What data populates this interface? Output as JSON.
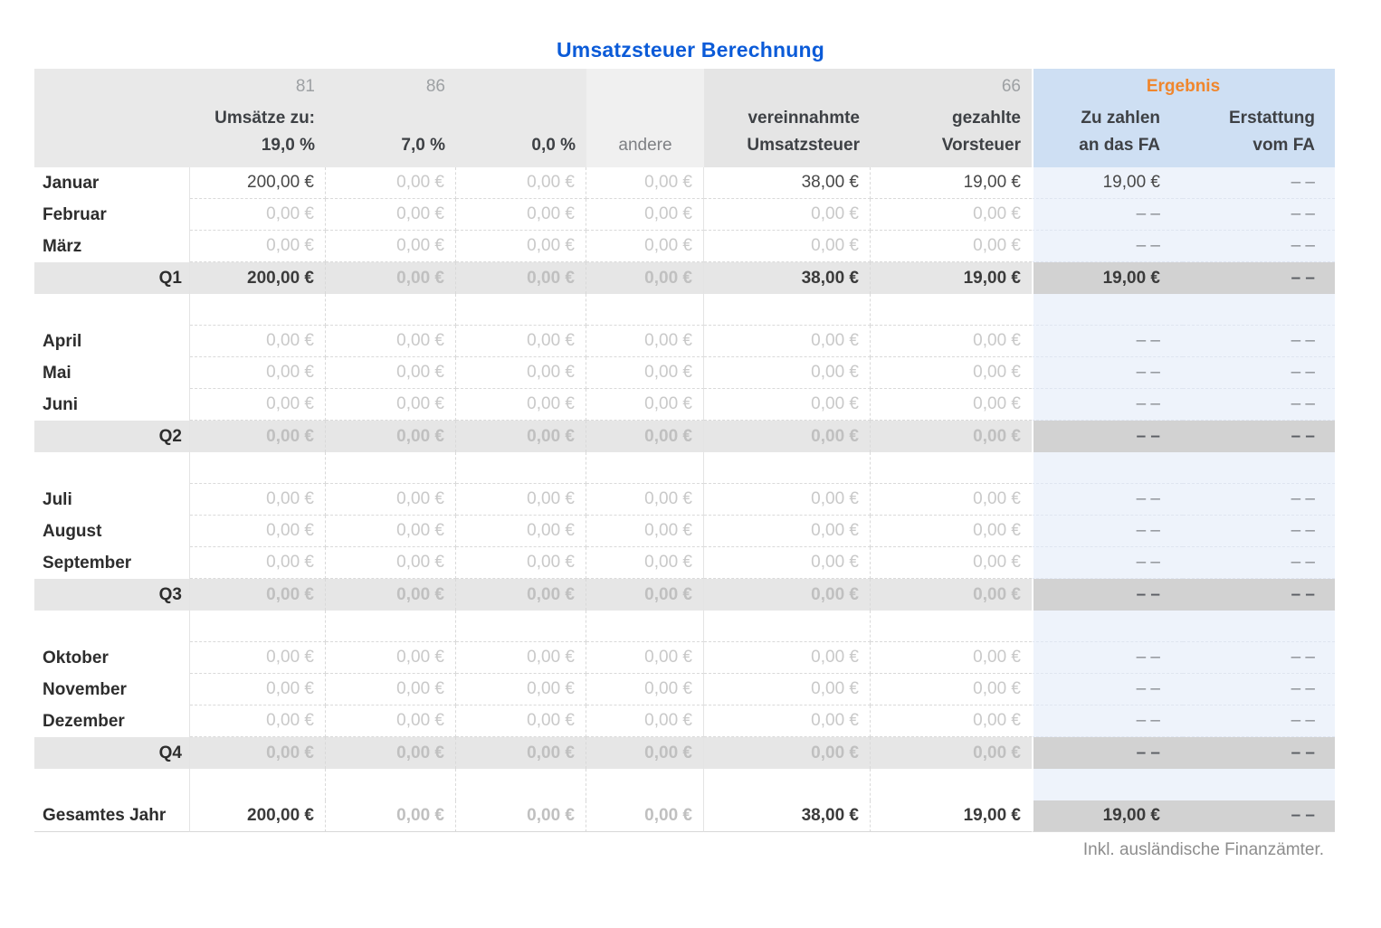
{
  "title": "Umsatzsteuer Berechnung",
  "footnote": "Inkl. ausländische Finanzämter.",
  "colors": {
    "title_blue": "#0b5bd8",
    "ergebnis_orange": "#f0862c",
    "header_blue": "#cedff3",
    "body_blue": "#eef3fb",
    "header_gray": "#e9e9e9",
    "quarter_gray": "#e6e6e6",
    "quarter_result_gray": "#d2d2d2"
  },
  "header": {
    "code_rate_19": "81",
    "code_rate_7": "86",
    "code_vorsteuer": "66",
    "ergebnis": "Ergebnis",
    "umsaetze_zu": "Umsätze zu:",
    "rate_19": "19,0 %",
    "rate_7": "7,0 %",
    "rate_0": "0,0 %",
    "andere": "andere",
    "vereinnahmte_line1": "vereinnahmte",
    "vereinnahmte_line2": "Umsatzsteuer",
    "gezahlte_line1": "gezahlte",
    "gezahlte_line2": "Vorsteuer",
    "zu_zahlen_line1": "Zu zahlen",
    "zu_zahlen_line2": "an das FA",
    "erstattung_line1": "Erstattung",
    "erstattung_line2": "vom FA"
  },
  "table": {
    "zero_value": "0,00 €",
    "dash_value": "– –",
    "rows": [
      {
        "type": "month",
        "label": "Januar",
        "cells": [
          "200,00 €",
          "0,00 €",
          "0,00 €",
          "0,00 €",
          "38,00 €",
          "19,00 €",
          "19,00 €",
          "– –"
        ]
      },
      {
        "type": "month",
        "label": "Februar",
        "cells": [
          "0,00 €",
          "0,00 €",
          "0,00 €",
          "0,00 €",
          "0,00 €",
          "0,00 €",
          "– –",
          "– –"
        ]
      },
      {
        "type": "month",
        "label": "März",
        "cells": [
          "0,00 €",
          "0,00 €",
          "0,00 €",
          "0,00 €",
          "0,00 €",
          "0,00 €",
          "– –",
          "– –"
        ]
      },
      {
        "type": "quarter",
        "label": "Q1",
        "cells": [
          "200,00 €",
          "0,00 €",
          "0,00 €",
          "0,00 €",
          "38,00 €",
          "19,00 €",
          "19,00 €",
          "– –"
        ]
      },
      {
        "type": "spacer",
        "label": "",
        "cells": [
          "",
          "",
          "",
          "",
          "",
          "",
          "",
          ""
        ]
      },
      {
        "type": "month",
        "label": "April",
        "cells": [
          "0,00 €",
          "0,00 €",
          "0,00 €",
          "0,00 €",
          "0,00 €",
          "0,00 €",
          "– –",
          "– –"
        ]
      },
      {
        "type": "month",
        "label": "Mai",
        "cells": [
          "0,00 €",
          "0,00 €",
          "0,00 €",
          "0,00 €",
          "0,00 €",
          "0,00 €",
          "– –",
          "– –"
        ]
      },
      {
        "type": "month",
        "label": "Juni",
        "cells": [
          "0,00 €",
          "0,00 €",
          "0,00 €",
          "0,00 €",
          "0,00 €",
          "0,00 €",
          "– –",
          "– –"
        ]
      },
      {
        "type": "quarter",
        "label": "Q2",
        "cells": [
          "0,00 €",
          "0,00 €",
          "0,00 €",
          "0,00 €",
          "0,00 €",
          "0,00 €",
          "– –",
          "– –"
        ]
      },
      {
        "type": "spacer",
        "label": "",
        "cells": [
          "",
          "",
          "",
          "",
          "",
          "",
          "",
          ""
        ]
      },
      {
        "type": "month",
        "label": "Juli",
        "cells": [
          "0,00 €",
          "0,00 €",
          "0,00 €",
          "0,00 €",
          "0,00 €",
          "0,00 €",
          "– –",
          "– –"
        ]
      },
      {
        "type": "month",
        "label": "August",
        "cells": [
          "0,00 €",
          "0,00 €",
          "0,00 €",
          "0,00 €",
          "0,00 €",
          "0,00 €",
          "– –",
          "– –"
        ]
      },
      {
        "type": "month",
        "label": "September",
        "cells": [
          "0,00 €",
          "0,00 €",
          "0,00 €",
          "0,00 €",
          "0,00 €",
          "0,00 €",
          "– –",
          "– –"
        ]
      },
      {
        "type": "quarter",
        "label": "Q3",
        "cells": [
          "0,00 €",
          "0,00 €",
          "0,00 €",
          "0,00 €",
          "0,00 €",
          "0,00 €",
          "– –",
          "– –"
        ]
      },
      {
        "type": "spacer",
        "label": "",
        "cells": [
          "",
          "",
          "",
          "",
          "",
          "",
          "",
          ""
        ]
      },
      {
        "type": "month",
        "label": "Oktober",
        "cells": [
          "0,00 €",
          "0,00 €",
          "0,00 €",
          "0,00 €",
          "0,00 €",
          "0,00 €",
          "– –",
          "– –"
        ]
      },
      {
        "type": "month",
        "label": "November",
        "cells": [
          "0,00 €",
          "0,00 €",
          "0,00 €",
          "0,00 €",
          "0,00 €",
          "0,00 €",
          "– –",
          "– –"
        ]
      },
      {
        "type": "month",
        "label": "Dezember",
        "cells": [
          "0,00 €",
          "0,00 €",
          "0,00 €",
          "0,00 €",
          "0,00 €",
          "0,00 €",
          "– –",
          "– –"
        ]
      },
      {
        "type": "quarter",
        "label": "Q4",
        "cells": [
          "0,00 €",
          "0,00 €",
          "0,00 €",
          "0,00 €",
          "0,00 €",
          "0,00 €",
          "– –",
          "– –"
        ]
      },
      {
        "type": "spacer-end",
        "label": "",
        "cells": [
          "",
          "",
          "",
          "",
          "",
          "",
          "",
          ""
        ]
      },
      {
        "type": "total",
        "label": "Gesamtes Jahr",
        "cells": [
          "200,00 €",
          "0,00 €",
          "0,00 €",
          "0,00 €",
          "38,00 €",
          "19,00 €",
          "19,00 €",
          "– –"
        ]
      }
    ]
  }
}
